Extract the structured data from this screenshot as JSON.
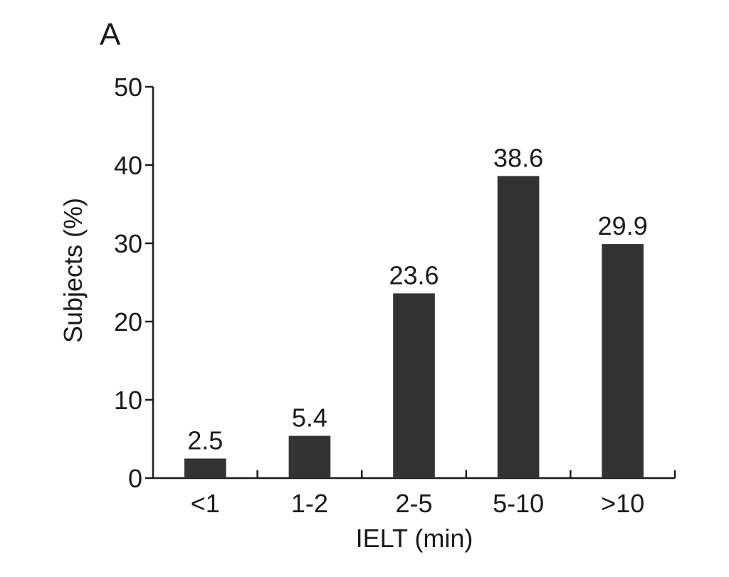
{
  "panel_label": "A",
  "chart_data": {
    "type": "bar",
    "categories": [
      "<1",
      "1-2",
      "2-5",
      "5-10",
      ">10"
    ],
    "values": [
      2.5,
      5.4,
      23.6,
      38.6,
      29.9
    ],
    "data_labels": [
      "2.5",
      "5.4",
      "23.6",
      "38.6",
      "29.9"
    ],
    "xlabel": "IELT (min)",
    "ylabel": "Subjects (%)",
    "ylim": [
      0,
      50
    ],
    "yticks": [
      0,
      10,
      20,
      30,
      40,
      50
    ],
    "bar_color": "#333333",
    "grid": false,
    "legend": "none"
  }
}
